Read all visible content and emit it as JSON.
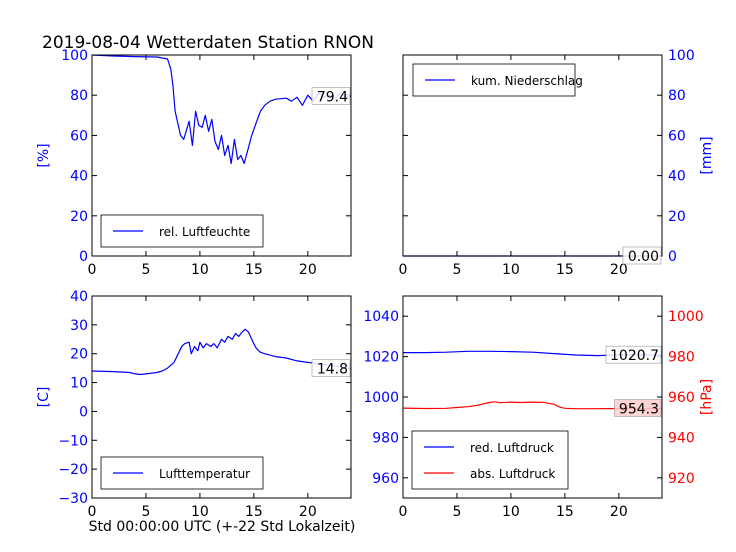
{
  "title": "2019-08-04 Wetterdaten Station RNON",
  "xlabel": "Std 00:00:00 UTC (+-22 Std Lokalzeit)",
  "colors": {
    "blue": "#0000ff",
    "red": "#ff0000",
    "box": "#ffcccc"
  },
  "chart_data": [
    {
      "type": "line",
      "panel": "top-left",
      "ylabel": "[%]",
      "ylabel_side": "left",
      "xlim": [
        0,
        24
      ],
      "ylim": [
        0,
        100
      ],
      "xticks": [
        0,
        5,
        10,
        15,
        20
      ],
      "yticks": [
        0,
        20,
        40,
        60,
        80,
        100
      ],
      "legend": "lower-left",
      "last_value": "79.4",
      "series": [
        {
          "name": "rel. Luftfeuchte",
          "color": "#0000ff",
          "x": [
            0,
            2,
            4,
            6,
            6.5,
            7,
            7.3,
            7.5,
            7.7,
            8,
            8.2,
            8.5,
            9,
            9.3,
            9.6,
            9.9,
            10.2,
            10.5,
            10.8,
            11.1,
            11.4,
            11.7,
            12,
            12.3,
            12.6,
            12.9,
            13.2,
            13.5,
            13.8,
            14.1,
            14.4,
            14.8,
            15.2,
            15.6,
            16,
            16.5,
            17,
            18,
            18.5,
            19,
            19.5,
            20,
            20.5,
            21,
            21.5,
            22,
            22.5,
            23,
            23.5,
            24
          ],
          "y": [
            100,
            99.5,
            99.2,
            99,
            98.5,
            98,
            93,
            85,
            72,
            65,
            60,
            58,
            67,
            55,
            72,
            65,
            64,
            70,
            62,
            68,
            57,
            53,
            60,
            50,
            55,
            46,
            58,
            48,
            50,
            46,
            52,
            60,
            66,
            72,
            75,
            77,
            78,
            78.5,
            77,
            79,
            75,
            80,
            77,
            81,
            79,
            80,
            78,
            81,
            79,
            79.4
          ]
        }
      ]
    },
    {
      "type": "line",
      "panel": "top-right",
      "ylabel": "[mm]",
      "ylabel_side": "right",
      "xlim": [
        0,
        24
      ],
      "ylim": [
        0,
        100
      ],
      "xticks": [
        0,
        5,
        10,
        15,
        20
      ],
      "yticks": [
        0,
        20,
        40,
        60,
        80,
        100
      ],
      "legend": "upper-left",
      "last_value": "0.00",
      "series": [
        {
          "name": "kum. Niederschlag",
          "color": "#0000ff",
          "x": [
            0,
            24
          ],
          "y": [
            0,
            0
          ]
        }
      ]
    },
    {
      "type": "line",
      "panel": "bottom-left",
      "ylabel": "[C]",
      "ylabel_side": "left",
      "xlim": [
        0,
        24
      ],
      "ylim": [
        -30,
        40
      ],
      "xticks": [
        0,
        5,
        10,
        15,
        20
      ],
      "yticks": [
        -30,
        -20,
        -10,
        0,
        10,
        20,
        30,
        40
      ],
      "legend": "lower-left",
      "last_value": "14.8",
      "series": [
        {
          "name": "Lufttemperatur",
          "color": "#0000ff",
          "x": [
            0,
            2,
            3.5,
            4,
            4.5,
            5,
            6,
            6.5,
            7,
            7.3,
            7.6,
            8,
            8.3,
            8.6,
            9,
            9.2,
            9.5,
            9.8,
            10,
            10.3,
            10.6,
            11,
            11.3,
            11.6,
            12,
            12.3,
            12.6,
            13,
            13.3,
            13.6,
            13.9,
            14.2,
            14.5,
            14.8,
            15.2,
            15.6,
            16,
            17,
            18,
            19,
            20,
            21,
            22,
            23,
            24
          ],
          "y": [
            14,
            13.8,
            13.5,
            13,
            12.8,
            13,
            13.5,
            14,
            15,
            16,
            17,
            20,
            22.5,
            23.5,
            24,
            20,
            22.5,
            21,
            24,
            22,
            23.5,
            22.5,
            23.5,
            22,
            25,
            24,
            26,
            25,
            27,
            26,
            27.5,
            28.5,
            27.5,
            25,
            22,
            20.5,
            20,
            19,
            18.5,
            17.5,
            17,
            16.5,
            16,
            15.5,
            14.8
          ]
        }
      ]
    },
    {
      "type": "line",
      "panel": "bottom-right",
      "ylabel": "[hPa]",
      "ylabel_side": "right",
      "xlim": [
        0,
        24
      ],
      "ylim_left": [
        950,
        1050
      ],
      "ylim_right": [
        910,
        1010
      ],
      "xticks": [
        0,
        5,
        10,
        15,
        20
      ],
      "yticks_left": [
        960,
        980,
        1000,
        1020,
        1040
      ],
      "yticks_right": [
        920,
        940,
        960,
        980,
        1000
      ],
      "legend": "lower-left",
      "last_value_left": "1020.7",
      "last_value_right": "954.3",
      "series": [
        {
          "name": "red. Luftdruck",
          "color": "#0000ff",
          "axis": "left",
          "x": [
            0,
            2,
            4,
            6,
            8,
            10,
            12,
            14,
            16,
            18,
            20,
            22,
            24
          ],
          "y": [
            1022,
            1022,
            1022.2,
            1022.6,
            1022.6,
            1022.5,
            1022.2,
            1021.5,
            1020.8,
            1020.5,
            1020.9,
            1021,
            1020.7
          ]
        },
        {
          "name": "abs. Luftdruck",
          "color": "#ff0000",
          "axis": "right",
          "x": [
            0,
            2,
            4,
            5,
            6,
            7,
            8,
            8.5,
            9,
            10,
            11,
            12,
            13,
            14,
            14.5,
            15,
            16,
            18,
            20,
            22,
            24
          ],
          "y": [
            954.5,
            954.3,
            954.4,
            954.8,
            955.2,
            956,
            957.3,
            957.6,
            957.2,
            957.5,
            957.3,
            957.5,
            957.4,
            956.4,
            955,
            954.4,
            954.2,
            954.2,
            954.3,
            954.4,
            954.3
          ]
        }
      ]
    }
  ]
}
